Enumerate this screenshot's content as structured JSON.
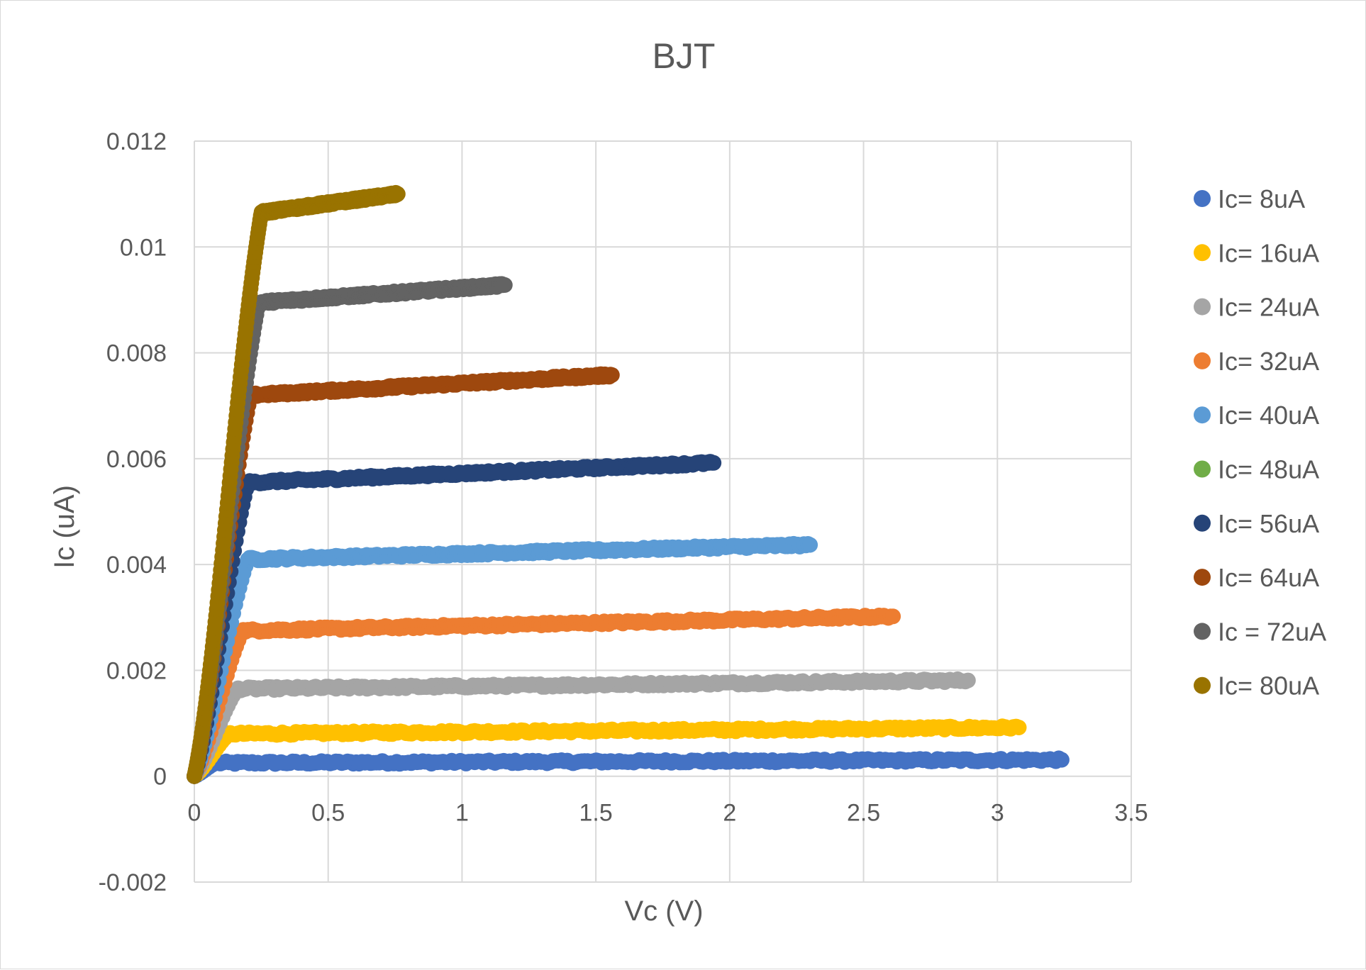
{
  "chart_data": {
    "type": "scatter",
    "title": "BJT",
    "xlabel": "Vc (V)",
    "ylabel": "Ic (uA)",
    "xlim": [
      0,
      3.5
    ],
    "ylim": [
      -0.002,
      0.012
    ],
    "x_ticks": [
      "0",
      "0.5",
      "1",
      "1.5",
      "2",
      "2.5",
      "3",
      "3.5"
    ],
    "y_ticks": [
      "-0.002",
      "0",
      "0.002",
      "0.004",
      "0.006",
      "0.008",
      "0.01",
      "0.012"
    ],
    "grid": true,
    "legend_position": "right",
    "series": [
      {
        "name": "Ic= 8uA",
        "color": "#4472C4",
        "x_end": 3.24,
        "sat": 0.00025,
        "end": 0.00031,
        "knee": 0.08,
        "rise": 0.1
      },
      {
        "name": "Ic= 16uA",
        "color": "#FFC000",
        "x_end": 3.08,
        "sat": 0.0008,
        "end": 0.00092,
        "knee": 0.13,
        "rise": 0.1
      },
      {
        "name": "Ic= 24uA",
        "color": "#A5A5A5",
        "x_end": 2.89,
        "sat": 0.00165,
        "end": 0.00181,
        "knee": 0.16,
        "rise": 0.1
      },
      {
        "name": "Ic= 32uA",
        "color": "#ED7D31",
        "x_end": 2.61,
        "sat": 0.00275,
        "end": 0.00302,
        "knee": 0.18,
        "rise": 0.11
      },
      {
        "name": "Ic= 40uA",
        "color": "#5B9BD5",
        "x_end": 2.3,
        "sat": 0.0041,
        "end": 0.00437,
        "knee": 0.2,
        "rise": 0.11
      },
      {
        "name": "Ic= 48uA",
        "color": "#70AD47",
        "x_end": null,
        "sat": null,
        "end": null,
        "knee": null,
        "rise": null
      },
      {
        "name": "Ic= 56uA",
        "color": "#264478",
        "x_end": 1.94,
        "sat": 0.00555,
        "end": 0.00592,
        "knee": 0.2,
        "rise": 0.12
      },
      {
        "name": "Ic= 64uA",
        "color": "#9E480E",
        "x_end": 1.56,
        "sat": 0.0072,
        "end": 0.00758,
        "knee": 0.21,
        "rise": 0.12
      },
      {
        "name": "Ic = 72uA",
        "color": "#636363",
        "x_end": 1.16,
        "sat": 0.00895,
        "end": 0.00928,
        "knee": 0.24,
        "rise": 0.14
      },
      {
        "name": "Ic= 80uA",
        "color": "#997300",
        "x_end": 0.76,
        "sat": 0.01065,
        "end": 0.011,
        "knee": 0.25,
        "rise": 0.15
      }
    ]
  }
}
